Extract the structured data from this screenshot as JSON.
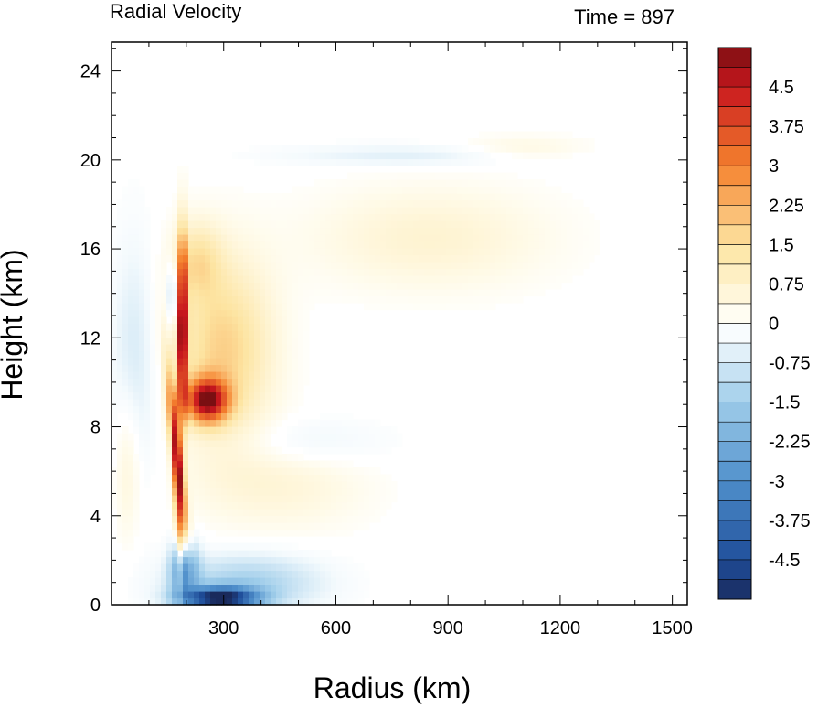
{
  "chart_data": {
    "type": "heatmap",
    "title_left": "Radial Velocity",
    "title_right": "Time = 897",
    "xlabel": "Radius (km)",
    "ylabel": "Height (km)",
    "xlim": [
      0,
      1540
    ],
    "ylim": [
      0,
      25.3
    ],
    "xticks": [
      300,
      600,
      900,
      1200,
      1500
    ],
    "yticks": [
      0,
      4,
      8,
      12,
      16,
      20,
      24
    ],
    "colorbar": {
      "levels": [
        -5.25,
        5.25
      ],
      "labels": [
        "4.5",
        "3.75",
        "3",
        "2.25",
        "1.5",
        "0.75",
        "0",
        "-0.75",
        "-1.5",
        "-2.25",
        "-3",
        "-3.75",
        "-4.5"
      ],
      "label_values": [
        4.5,
        3.75,
        3,
        2.25,
        1.5,
        0.75,
        0,
        -0.75,
        -1.5,
        -2.25,
        -3,
        -3.75,
        -4.5
      ],
      "bins": 28,
      "colormap": [
        {
          "v": -5.25,
          "c": "#1a2a5c"
        },
        {
          "v": -4.5,
          "c": "#1f4e9a"
        },
        {
          "v": -3.0,
          "c": "#4f8fcb"
        },
        {
          "v": -1.5,
          "c": "#9fcdea"
        },
        {
          "v": -0.3,
          "c": "#f4fafd"
        },
        {
          "v": 0.0,
          "c": "#ffffff"
        },
        {
          "v": 0.3,
          "c": "#fffbea"
        },
        {
          "v": 1.5,
          "c": "#fde4a1"
        },
        {
          "v": 3.0,
          "c": "#f5822e"
        },
        {
          "v": 4.5,
          "c": "#c8171e"
        },
        {
          "v": 5.25,
          "c": "#7a0f12"
        }
      ]
    },
    "features": [
      {
        "desc": "outflow jet core",
        "r": [
          170,
          200
        ],
        "z": [
          9,
          15
        ],
        "value": 5.0
      },
      {
        "desc": "upper outflow spread",
        "r": [
          200,
          450
        ],
        "z": [
          8,
          16
        ],
        "value": 2.0
      },
      {
        "desc": "strong outflow lobe",
        "r": [
          200,
          320
        ],
        "z": [
          8.3,
          10
        ],
        "value": 4.5
      },
      {
        "desc": "slanted eyewall outflow",
        "r": [
          140,
          190
        ],
        "z": [
          3,
          10
        ],
        "value": 4.0
      },
      {
        "desc": "boundary-layer inflow",
        "r": [
          150,
          400
        ],
        "z": [
          0,
          2
        ],
        "value": -4.5
      },
      {
        "desc": "upper inflow band",
        "r": [
          400,
          1000
        ],
        "z": [
          19.5,
          20.5
        ],
        "value": -0.6
      },
      {
        "desc": "outer outflow",
        "r": [
          600,
          1250
        ],
        "z": [
          16,
          21
        ],
        "value": 0.8
      }
    ]
  }
}
